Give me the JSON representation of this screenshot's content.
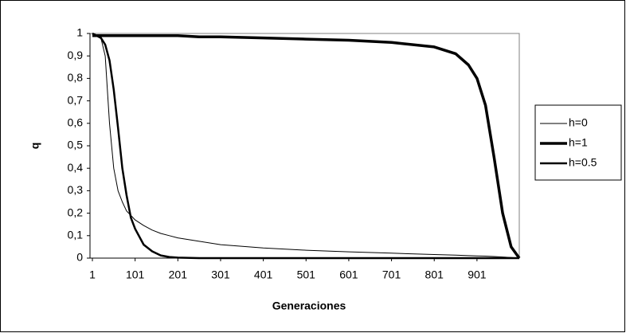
{
  "chart_data": {
    "type": "line",
    "x_label": "Generaciones",
    "y_label": "q",
    "x": [
      1,
      21,
      31,
      41,
      51,
      61,
      71,
      81,
      91,
      101,
      121,
      141,
      161,
      181,
      201,
      251,
      301,
      401,
      501,
      601,
      701,
      801,
      851,
      881,
      901,
      921,
      941,
      961,
      981,
      1000
    ],
    "series": [
      {
        "name": "h=0",
        "color": "#000000",
        "width": 1,
        "values": [
          1,
          0.98,
          0.9,
          0.6,
          0.4,
          0.3,
          0.25,
          0.21,
          0.19,
          0.17,
          0.145,
          0.125,
          0.11,
          0.1,
          0.09,
          0.075,
          0.06,
          0.045,
          0.035,
          0.028,
          0.022,
          0.016,
          0.013,
          0.011,
          0.01,
          0.009,
          0.007,
          0.005,
          0.003,
          0
        ]
      },
      {
        "name": "h=1",
        "color": "#000000",
        "width": 3.5,
        "values": [
          0.99,
          0.99,
          0.99,
          0.99,
          0.99,
          0.99,
          0.99,
          0.99,
          0.99,
          0.99,
          0.99,
          0.99,
          0.99,
          0.99,
          0.99,
          0.985,
          0.985,
          0.98,
          0.975,
          0.97,
          0.96,
          0.94,
          0.91,
          0.86,
          0.8,
          0.68,
          0.45,
          0.2,
          0.05,
          0
        ]
      },
      {
        "name": "h=0.5",
        "color": "#000000",
        "width": 2.5,
        "values": [
          1,
          0.98,
          0.95,
          0.88,
          0.75,
          0.58,
          0.4,
          0.28,
          0.18,
          0.13,
          0.06,
          0.03,
          0.012,
          0.005,
          0.002,
          0,
          0,
          0,
          0,
          0,
          0,
          0,
          0,
          0,
          0,
          0,
          0,
          0,
          0,
          0
        ]
      }
    ],
    "xlim": [
      1,
      1000
    ],
    "xticks": [
      1,
      101,
      201,
      301,
      401,
      501,
      601,
      701,
      801,
      901
    ],
    "ylim": [
      0,
      1
    ],
    "yticks": [
      0,
      {
        "value": 0.1,
        "label": "0,1"
      },
      {
        "value": 0.2,
        "label": "0,2"
      },
      {
        "value": 0.3,
        "label": "0,3"
      },
      {
        "value": 0.4,
        "label": "0,4"
      },
      {
        "value": 0.5,
        "label": "0,5"
      },
      {
        "value": 0.6,
        "label": "0,6"
      },
      {
        "value": 0.7,
        "label": "0,7"
      },
      {
        "value": 0.8,
        "label": "0,8"
      },
      {
        "value": 0.9,
        "label": "0,9"
      },
      1
    ],
    "grid": false,
    "legend": "right"
  }
}
